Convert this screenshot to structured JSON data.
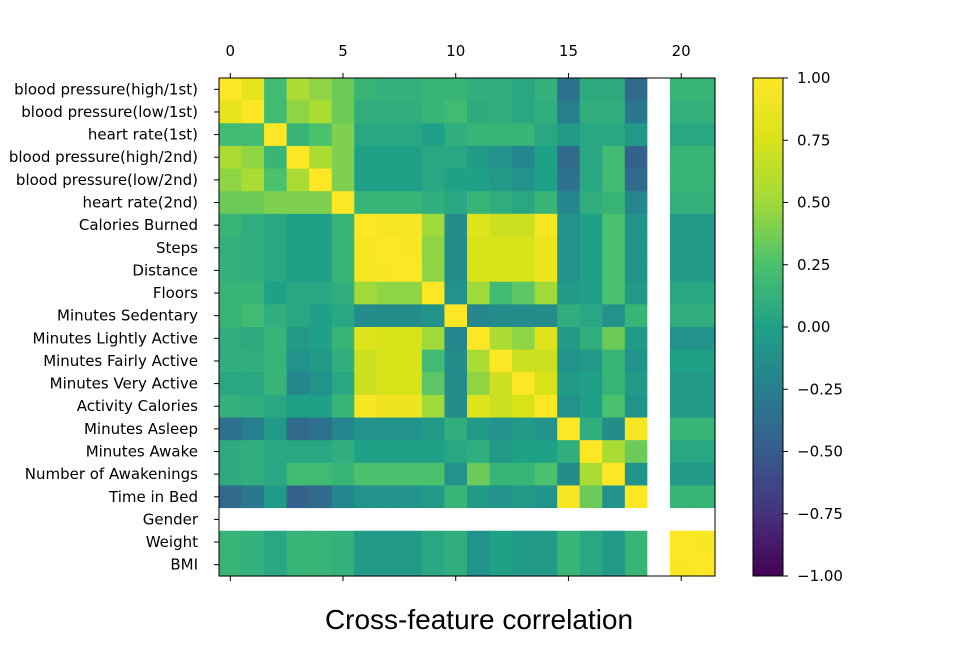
{
  "caption": "Cross-feature correlation",
  "chart_data": {
    "type": "heatmap",
    "title": "",
    "xlabel": "",
    "ylabel": "",
    "colormap": "viridis",
    "vmin": -1.0,
    "vmax": 1.0,
    "x_ticks": [
      0,
      5,
      10,
      15,
      20
    ],
    "colorbar_ticks": [
      "1.00",
      "0.75",
      "0.50",
      "0.25",
      "0.00",
      "−0.25",
      "−0.50",
      "−0.75",
      "−1.00"
    ],
    "colorbar_tick_values": [
      1.0,
      0.75,
      0.5,
      0.25,
      0.0,
      -0.25,
      -0.5,
      -0.75,
      -1.0
    ],
    "labels": [
      "blood pressure(high/1st)",
      "blood pressure(low/1st)",
      "heart rate(1st)",
      "blood pressure(high/2nd)",
      "blood pressure(low/2nd)",
      "heart rate(2nd)",
      "Calories Burned",
      "Steps",
      "Distance",
      "Floors",
      "Minutes Sedentary",
      "Minutes Lightly Active",
      "Minutes Fairly Active",
      "Minutes Very Active",
      "Activity Calories",
      "Minutes Asleep",
      "Minutes Awake",
      "Number of Awakenings",
      "Time in Bed",
      "Gender",
      "Weight",
      "BMI"
    ],
    "matrix": [
      [
        1.0,
        0.85,
        0.2,
        0.55,
        0.45,
        0.35,
        0.15,
        0.12,
        0.12,
        0.15,
        0.15,
        0.1,
        0.1,
        0.05,
        0.12,
        -0.35,
        0.08,
        0.08,
        -0.4,
        null,
        0.15,
        0.15
      ],
      [
        0.85,
        1.0,
        0.2,
        0.45,
        0.55,
        0.35,
        0.1,
        0.1,
        0.1,
        0.15,
        0.2,
        0.08,
        0.1,
        0.05,
        0.1,
        -0.25,
        0.1,
        0.1,
        -0.3,
        null,
        0.12,
        0.12
      ],
      [
        0.2,
        0.2,
        1.0,
        0.15,
        0.25,
        0.4,
        0.05,
        0.05,
        0.05,
        0.0,
        0.1,
        0.15,
        0.15,
        0.15,
        0.05,
        -0.05,
        0.05,
        0.05,
        -0.05,
        null,
        0.05,
        0.05
      ],
      [
        0.55,
        0.45,
        0.15,
        1.0,
        0.55,
        0.4,
        0.0,
        0.0,
        0.0,
        0.05,
        0.05,
        -0.05,
        -0.1,
        -0.2,
        0.0,
        -0.4,
        0.05,
        0.2,
        -0.45,
        null,
        0.15,
        0.15
      ],
      [
        0.45,
        0.55,
        0.25,
        0.55,
        1.0,
        0.4,
        0.0,
        0.0,
        0.0,
        0.05,
        0.0,
        0.0,
        -0.05,
        -0.1,
        0.0,
        -0.35,
        0.05,
        0.2,
        -0.4,
        null,
        0.15,
        0.15
      ],
      [
        0.35,
        0.35,
        0.4,
        0.4,
        0.4,
        1.0,
        0.15,
        0.15,
        0.15,
        0.1,
        0.05,
        0.15,
        0.1,
        0.05,
        0.15,
        -0.2,
        0.1,
        0.15,
        -0.2,
        null,
        0.12,
        0.12
      ],
      [
        0.15,
        0.1,
        0.05,
        0.0,
        0.0,
        0.15,
        1.0,
        0.95,
        0.95,
        0.5,
        -0.15,
        0.8,
        0.7,
        0.7,
        0.95,
        -0.1,
        0.0,
        0.25,
        -0.1,
        null,
        -0.05,
        -0.05
      ],
      [
        0.12,
        0.1,
        0.05,
        0.0,
        0.0,
        0.15,
        0.95,
        1.0,
        0.98,
        0.45,
        -0.15,
        0.75,
        0.75,
        0.75,
        0.9,
        -0.1,
        0.0,
        0.25,
        -0.1,
        null,
        -0.05,
        -0.05
      ],
      [
        0.12,
        0.1,
        0.05,
        0.0,
        0.0,
        0.15,
        0.95,
        0.98,
        1.0,
        0.45,
        -0.15,
        0.75,
        0.75,
        0.75,
        0.9,
        -0.1,
        0.0,
        0.25,
        -0.1,
        null,
        -0.05,
        -0.05
      ],
      [
        0.15,
        0.15,
        0.0,
        0.05,
        0.05,
        0.1,
        0.5,
        0.45,
        0.45,
        1.0,
        -0.1,
        0.5,
        0.2,
        0.3,
        0.5,
        -0.05,
        0.0,
        0.25,
        -0.05,
        null,
        0.05,
        0.05
      ],
      [
        0.15,
        0.2,
        0.1,
        0.05,
        0.0,
        0.05,
        -0.15,
        -0.15,
        -0.15,
        -0.1,
        1.0,
        -0.2,
        -0.15,
        -0.15,
        -0.15,
        0.1,
        0.05,
        -0.1,
        0.15,
        null,
        0.1,
        0.1
      ],
      [
        0.1,
        0.08,
        0.15,
        -0.05,
        0.0,
        0.15,
        0.8,
        0.75,
        0.75,
        0.5,
        -0.2,
        1.0,
        0.55,
        0.45,
        0.8,
        -0.05,
        0.1,
        0.35,
        -0.05,
        null,
        -0.1,
        -0.1
      ],
      [
        0.1,
        0.1,
        0.15,
        -0.1,
        -0.05,
        0.1,
        0.7,
        0.75,
        0.75,
        0.2,
        -0.15,
        0.55,
        1.0,
        0.7,
        0.7,
        -0.1,
        -0.05,
        0.15,
        -0.1,
        null,
        0.0,
        0.0
      ],
      [
        0.05,
        0.05,
        0.15,
        -0.2,
        -0.1,
        0.05,
        0.7,
        0.75,
        0.75,
        0.3,
        -0.15,
        0.45,
        0.7,
        1.0,
        0.75,
        -0.05,
        0.0,
        0.15,
        -0.05,
        null,
        -0.05,
        -0.05
      ],
      [
        0.12,
        0.1,
        0.05,
        0.0,
        0.0,
        0.15,
        0.95,
        0.9,
        0.9,
        0.5,
        -0.15,
        0.8,
        0.7,
        0.75,
        1.0,
        -0.1,
        0.0,
        0.25,
        -0.1,
        null,
        -0.05,
        -0.05
      ],
      [
        -0.35,
        -0.25,
        -0.05,
        -0.4,
        -0.35,
        -0.2,
        -0.1,
        -0.1,
        -0.1,
        -0.05,
        0.1,
        -0.05,
        -0.1,
        -0.05,
        -0.1,
        1.0,
        0.1,
        -0.15,
        0.95,
        null,
        0.15,
        0.15
      ],
      [
        0.08,
        0.1,
        0.05,
        0.05,
        0.05,
        0.1,
        0.0,
        0.0,
        0.0,
        0.0,
        0.05,
        0.1,
        -0.05,
        0.0,
        0.0,
        0.1,
        1.0,
        0.55,
        0.35,
        null,
        0.05,
        0.05
      ],
      [
        0.08,
        0.1,
        0.05,
        0.2,
        0.2,
        0.15,
        0.25,
        0.25,
        0.25,
        0.25,
        -0.1,
        0.35,
        0.15,
        0.15,
        0.25,
        -0.15,
        0.55,
        1.0,
        -0.1,
        null,
        -0.05,
        -0.05
      ],
      [
        -0.4,
        -0.3,
        -0.05,
        -0.45,
        -0.4,
        -0.2,
        -0.1,
        -0.1,
        -0.1,
        -0.05,
        0.15,
        -0.05,
        -0.1,
        -0.05,
        -0.1,
        0.95,
        0.35,
        -0.1,
        1.0,
        null,
        0.15,
        0.15
      ],
      [
        null,
        null,
        null,
        null,
        null,
        null,
        null,
        null,
        null,
        null,
        null,
        null,
        null,
        null,
        null,
        null,
        null,
        null,
        null,
        null,
        null,
        null
      ],
      [
        0.15,
        0.12,
        0.05,
        0.15,
        0.15,
        0.12,
        -0.05,
        -0.05,
        -0.05,
        0.05,
        0.1,
        -0.1,
        0.0,
        -0.05,
        -0.05,
        0.15,
        0.05,
        -0.05,
        0.15,
        null,
        1.0,
        0.98
      ],
      [
        0.15,
        0.12,
        0.05,
        0.15,
        0.15,
        0.12,
        -0.05,
        -0.05,
        -0.05,
        0.05,
        0.1,
        -0.1,
        0.0,
        -0.05,
        -0.05,
        0.15,
        0.05,
        -0.05,
        0.15,
        null,
        0.98,
        1.0
      ]
    ]
  }
}
